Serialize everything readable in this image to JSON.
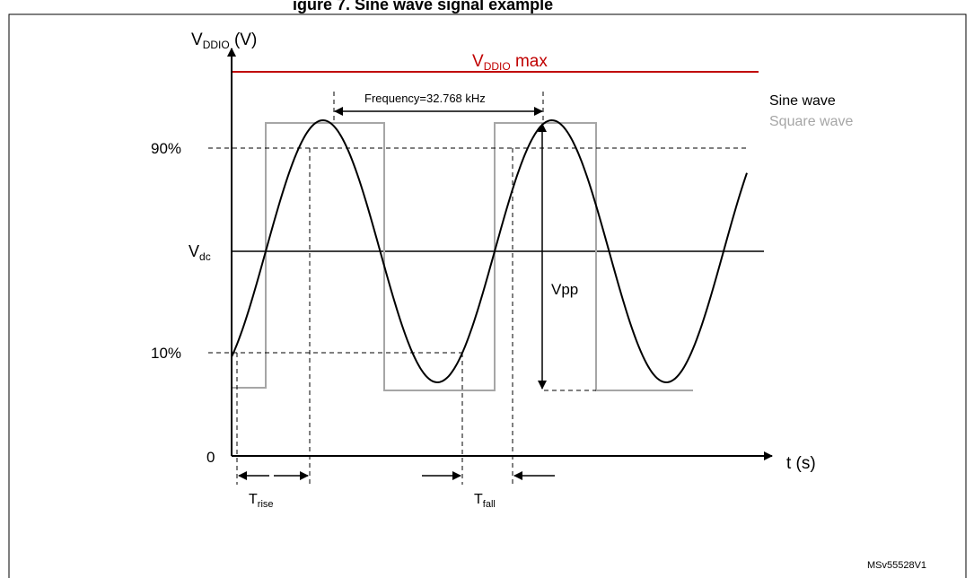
{
  "caption_fragment": "igure 7. Sine wave signal example",
  "y_axis": {
    "label_main": "V",
    "label_sub": "DDIO",
    "label_unit": " (V)"
  },
  "x_axis": {
    "label": "t (s)"
  },
  "vmax": {
    "label_main": "V",
    "label_sub": "DDIO",
    "label_suffix": " max",
    "color": "#c00000"
  },
  "levels": {
    "p90": "90%",
    "vdc_main": "V",
    "vdc_sub": "dc",
    "p10": "10%",
    "zero": "0"
  },
  "frequency_label": "Frequency=32.768 kHz",
  "vpp_label": "Vpp",
  "trise": {
    "main": "T",
    "sub": "rise"
  },
  "tfall": {
    "main": "T",
    "sub": "fall"
  },
  "legend": {
    "sine": "Sine wave",
    "square": "Square wave",
    "sine_color": "#000000",
    "square_color": "#a6a6a6"
  },
  "figure_id": "MSv55528V1"
}
